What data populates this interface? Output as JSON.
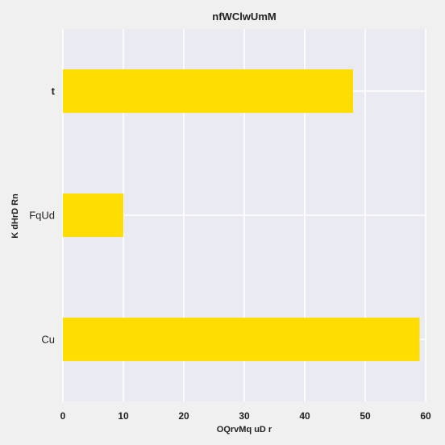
{
  "chart_data": {
    "type": "bar",
    "orientation": "horizontal",
    "title": "nfWClwUmM",
    "xlabel": "OQrvMq uD  r",
    "ylabel": "K dHrD Rn",
    "categories": [
      "t",
      "FqUd",
      "Cu"
    ],
    "values": [
      48,
      10,
      59
    ],
    "xlim": [
      0,
      60
    ],
    "xticks": [
      0,
      10,
      20,
      30,
      40,
      50,
      60
    ],
    "grid": true,
    "legend": "none",
    "colors": {
      "bar": "#ffdd00",
      "plot_background": "#eaeaf2",
      "page_background": "#f0f0f0",
      "grid": "#ffffff",
      "text": "#222222"
    }
  }
}
